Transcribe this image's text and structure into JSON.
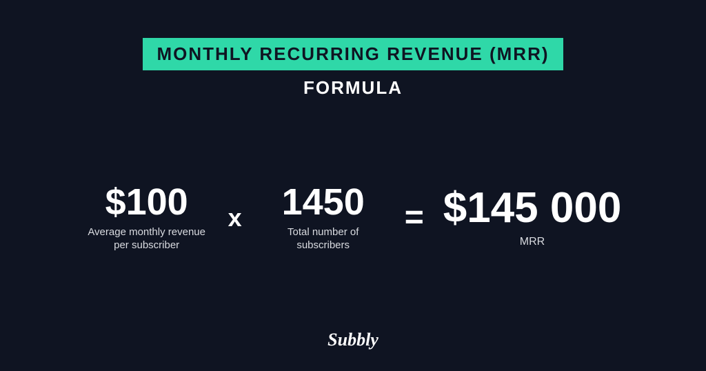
{
  "colors": {
    "background": "#0f1422",
    "accent": "#2fd8a8",
    "title_text": "#0f1422",
    "text": "#ffffff",
    "muted": "#d9dbe0"
  },
  "header": {
    "title": "MONTHLY RECURRING REVENUE (MRR)",
    "subtitle": "FORMULA",
    "title_fontsize": 26,
    "subtitle_fontsize": 26
  },
  "formula": {
    "term1": {
      "value": "$100",
      "label": "Average monthly revenue per subscriber",
      "value_fontsize": 54,
      "label_fontsize": 15
    },
    "operator1": {
      "symbol": "x",
      "fontsize": 36
    },
    "term2": {
      "value": "1450",
      "label": "Total number of subscribers",
      "value_fontsize": 54,
      "label_fontsize": 15
    },
    "operator2": {
      "symbol": "=",
      "fontsize": 48
    },
    "result": {
      "value": "$145 000",
      "label": "MRR",
      "value_fontsize": 62,
      "label_fontsize": 16
    }
  },
  "logo": {
    "text": "Subbly",
    "fontsize": 26
  }
}
